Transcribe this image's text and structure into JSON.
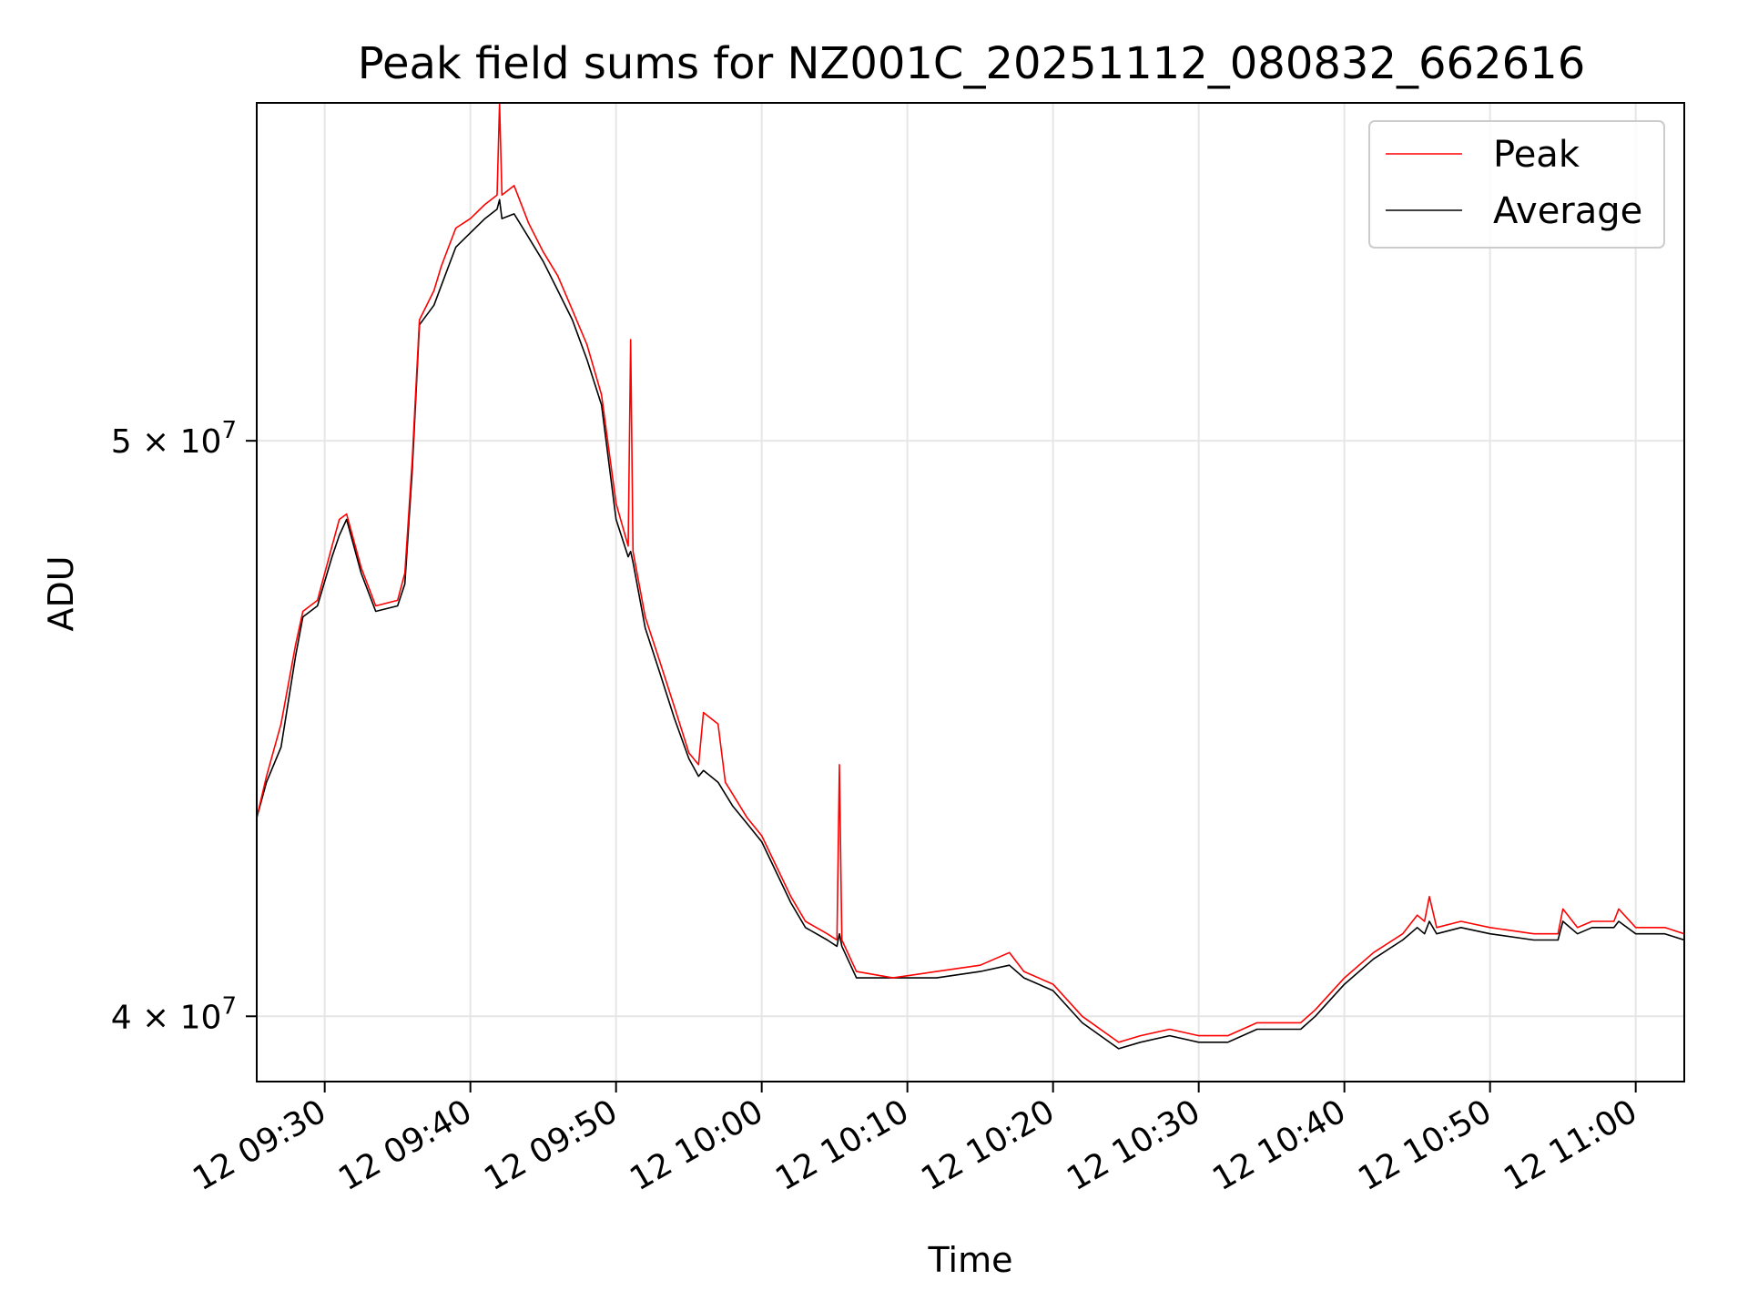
{
  "chart_data": {
    "type": "line",
    "title": "Peak field sums for NZ001C_20251112_080832_662616",
    "xlabel": "Time",
    "ylabel": "ADU",
    "y_scale": "log",
    "xlim": [
      "12 09:25:20",
      "12 11:03:20"
    ],
    "ylim": [
      39000000,
      57000000
    ],
    "x_ticks": [
      "12 09:30",
      "12 09:40",
      "12 09:50",
      "12 10:00",
      "12 10:10",
      "12 10:20",
      "12 10:30",
      "12 10:40",
      "12 10:50",
      "12 11:00"
    ],
    "y_ticks": [
      {
        "value": 40000000,
        "mantissa": "4",
        "exponent": "7"
      },
      {
        "value": 50000000,
        "mantissa": "5",
        "exponent": "7"
      }
    ],
    "tick_times": "× 10",
    "grid": true,
    "legend_position": "top-right",
    "series": [
      {
        "name": "Peak",
        "color": "#ff0000",
        "points": [
          [
            "12 09:25:20",
            43200000
          ],
          [
            "12 09:26:00",
            43900000
          ],
          [
            "12 09:27:00",
            44800000
          ],
          [
            "12 09:28:00",
            46200000
          ],
          [
            "12 09:28:30",
            46800000
          ],
          [
            "12 09:29:30",
            47000000
          ],
          [
            "12 09:30:30",
            48000000
          ],
          [
            "12 09:31:00",
            48500000
          ],
          [
            "12 09:31:30",
            48600000
          ],
          [
            "12 09:32:30",
            47600000
          ],
          [
            "12 09:33:30",
            46900000
          ],
          [
            "12 09:35:00",
            47000000
          ],
          [
            "12 09:35:30",
            47500000
          ],
          [
            "12 09:36:00",
            49600000
          ],
          [
            "12 09:36:30",
            52400000
          ],
          [
            "12 09:37:30",
            53000000
          ],
          [
            "12 09:38:00",
            53500000
          ],
          [
            "12 09:38:30",
            53900000
          ],
          [
            "12 09:39:00",
            54300000
          ],
          [
            "12 09:40:00",
            54500000
          ],
          [
            "12 09:41:00",
            54800000
          ],
          [
            "12 09:41:50",
            55000000
          ],
          [
            "12 09:42:00",
            57000000
          ],
          [
            "12 09:42:10",
            55000000
          ],
          [
            "12 09:43:00",
            55200000
          ],
          [
            "12 09:44:00",
            54400000
          ],
          [
            "12 09:45:00",
            53800000
          ],
          [
            "12 09:46:00",
            53300000
          ],
          [
            "12 09:47:00",
            52600000
          ],
          [
            "12 09:48:00",
            51900000
          ],
          [
            "12 09:49:00",
            50900000
          ],
          [
            "12 09:50:00",
            48800000
          ],
          [
            "12 09:50:50",
            48000000
          ],
          [
            "12 09:51:00",
            52000000
          ],
          [
            "12 09:51:10",
            47900000
          ],
          [
            "12 09:52:00",
            46700000
          ],
          [
            "12 09:53:00",
            45900000
          ],
          [
            "12 09:54:00",
            45100000
          ],
          [
            "12 09:55:00",
            44300000
          ],
          [
            "12 09:55:40",
            44100000
          ],
          [
            "12 09:56:00",
            45000000
          ],
          [
            "12 09:57:00",
            44800000
          ],
          [
            "12 09:57:30",
            43800000
          ],
          [
            "12 09:58:00",
            43600000
          ],
          [
            "12 09:59:00",
            43200000
          ],
          [
            "12 10:00:00",
            42900000
          ],
          [
            "12 10:02:00",
            41900000
          ],
          [
            "12 10:03:00",
            41500000
          ],
          [
            "12 10:04:30",
            41300000
          ],
          [
            "12 10:05:10",
            41200000
          ],
          [
            "12 10:05:20",
            44100000
          ],
          [
            "12 10:05:30",
            41200000
          ],
          [
            "12 10:06:30",
            40700000
          ],
          [
            "12 10:09:00",
            40600000
          ],
          [
            "12 10:12:00",
            40700000
          ],
          [
            "12 10:15:00",
            40800000
          ],
          [
            "12 10:17:00",
            41000000
          ],
          [
            "12 10:18:00",
            40700000
          ],
          [
            "12 10:20:00",
            40500000
          ],
          [
            "12 10:22:00",
            40000000
          ],
          [
            "12 10:24:30",
            39600000
          ],
          [
            "12 10:26:00",
            39700000
          ],
          [
            "12 10:28:00",
            39800000
          ],
          [
            "12 10:30:00",
            39700000
          ],
          [
            "12 10:32:00",
            39700000
          ],
          [
            "12 10:34:00",
            39900000
          ],
          [
            "12 10:37:00",
            39900000
          ],
          [
            "12 10:38:00",
            40100000
          ],
          [
            "12 10:40:00",
            40600000
          ],
          [
            "12 10:42:00",
            41000000
          ],
          [
            "12 10:44:00",
            41300000
          ],
          [
            "12 10:45:00",
            41600000
          ],
          [
            "12 10:45:30",
            41500000
          ],
          [
            "12 10:45:50",
            41900000
          ],
          [
            "12 10:46:20",
            41400000
          ],
          [
            "12 10:48:00",
            41500000
          ],
          [
            "12 10:50:00",
            41400000
          ],
          [
            "12 10:53:00",
            41300000
          ],
          [
            "12 10:54:40",
            41300000
          ],
          [
            "12 10:55:00",
            41700000
          ],
          [
            "12 10:56:00",
            41400000
          ],
          [
            "12 10:57:00",
            41500000
          ],
          [
            "12 10:58:30",
            41500000
          ],
          [
            "12 10:58:50",
            41700000
          ],
          [
            "12 11:00:00",
            41400000
          ],
          [
            "12 11:02:00",
            41400000
          ],
          [
            "12 11:03:20",
            41300000
          ]
        ]
      },
      {
        "name": "Average",
        "color": "#000000",
        "points": [
          [
            "12 09:25:20",
            43200000
          ],
          [
            "12 09:26:00",
            43800000
          ],
          [
            "12 09:27:00",
            44400000
          ],
          [
            "12 09:28:00",
            46000000
          ],
          [
            "12 09:28:30",
            46700000
          ],
          [
            "12 09:29:30",
            46900000
          ],
          [
            "12 09:30:30",
            47800000
          ],
          [
            "12 09:31:00",
            48200000
          ],
          [
            "12 09:31:30",
            48500000
          ],
          [
            "12 09:32:30",
            47500000
          ],
          [
            "12 09:33:30",
            46800000
          ],
          [
            "12 09:35:00",
            46900000
          ],
          [
            "12 09:35:30",
            47300000
          ],
          [
            "12 09:36:00",
            49400000
          ],
          [
            "12 09:36:30",
            52300000
          ],
          [
            "12 09:37:30",
            52700000
          ],
          [
            "12 09:38:00",
            53100000
          ],
          [
            "12 09:38:30",
            53500000
          ],
          [
            "12 09:39:00",
            53900000
          ],
          [
            "12 09:40:00",
            54200000
          ],
          [
            "12 09:41:00",
            54500000
          ],
          [
            "12 09:41:50",
            54700000
          ],
          [
            "12 09:42:00",
            54900000
          ],
          [
            "12 09:42:10",
            54500000
          ],
          [
            "12 09:43:00",
            54600000
          ],
          [
            "12 09:44:00",
            54100000
          ],
          [
            "12 09:45:00",
            53600000
          ],
          [
            "12 09:46:00",
            53000000
          ],
          [
            "12 09:47:00",
            52400000
          ],
          [
            "12 09:48:00",
            51600000
          ],
          [
            "12 09:49:00",
            50700000
          ],
          [
            "12 09:50:00",
            48500000
          ],
          [
            "12 09:50:50",
            47800000
          ],
          [
            "12 09:51:00",
            47900000
          ],
          [
            "12 09:51:10",
            47700000
          ],
          [
            "12 09:52:00",
            46500000
          ],
          [
            "12 09:53:00",
            45700000
          ],
          [
            "12 09:54:00",
            44900000
          ],
          [
            "12 09:55:00",
            44200000
          ],
          [
            "12 09:55:40",
            43900000
          ],
          [
            "12 09:56:00",
            44000000
          ],
          [
            "12 09:57:00",
            43800000
          ],
          [
            "12 09:57:30",
            43600000
          ],
          [
            "12 09:58:00",
            43400000
          ],
          [
            "12 09:59:00",
            43100000
          ],
          [
            "12 10:00:00",
            42800000
          ],
          [
            "12 10:02:00",
            41800000
          ],
          [
            "12 10:03:00",
            41400000
          ],
          [
            "12 10:04:30",
            41200000
          ],
          [
            "12 10:05:10",
            41100000
          ],
          [
            "12 10:05:20",
            41300000
          ],
          [
            "12 10:05:30",
            41100000
          ],
          [
            "12 10:06:30",
            40600000
          ],
          [
            "12 10:09:00",
            40600000
          ],
          [
            "12 10:12:00",
            40600000
          ],
          [
            "12 10:15:00",
            40700000
          ],
          [
            "12 10:17:00",
            40800000
          ],
          [
            "12 10:18:00",
            40600000
          ],
          [
            "12 10:20:00",
            40400000
          ],
          [
            "12 10:22:00",
            39900000
          ],
          [
            "12 10:24:30",
            39500000
          ],
          [
            "12 10:26:00",
            39600000
          ],
          [
            "12 10:28:00",
            39700000
          ],
          [
            "12 10:30:00",
            39600000
          ],
          [
            "12 10:32:00",
            39600000
          ],
          [
            "12 10:34:00",
            39800000
          ],
          [
            "12 10:37:00",
            39800000
          ],
          [
            "12 10:38:00",
            40000000
          ],
          [
            "12 10:40:00",
            40500000
          ],
          [
            "12 10:42:00",
            40900000
          ],
          [
            "12 10:44:00",
            41200000
          ],
          [
            "12 10:45:00",
            41400000
          ],
          [
            "12 10:45:30",
            41300000
          ],
          [
            "12 10:45:50",
            41500000
          ],
          [
            "12 10:46:20",
            41300000
          ],
          [
            "12 10:48:00",
            41400000
          ],
          [
            "12 10:50:00",
            41300000
          ],
          [
            "12 10:53:00",
            41200000
          ],
          [
            "12 10:54:40",
            41200000
          ],
          [
            "12 10:55:00",
            41500000
          ],
          [
            "12 10:56:00",
            41300000
          ],
          [
            "12 10:57:00",
            41400000
          ],
          [
            "12 10:58:30",
            41400000
          ],
          [
            "12 10:58:50",
            41500000
          ],
          [
            "12 11:00:00",
            41300000
          ],
          [
            "12 11:02:00",
            41300000
          ],
          [
            "12 11:03:20",
            41200000
          ]
        ]
      }
    ]
  }
}
